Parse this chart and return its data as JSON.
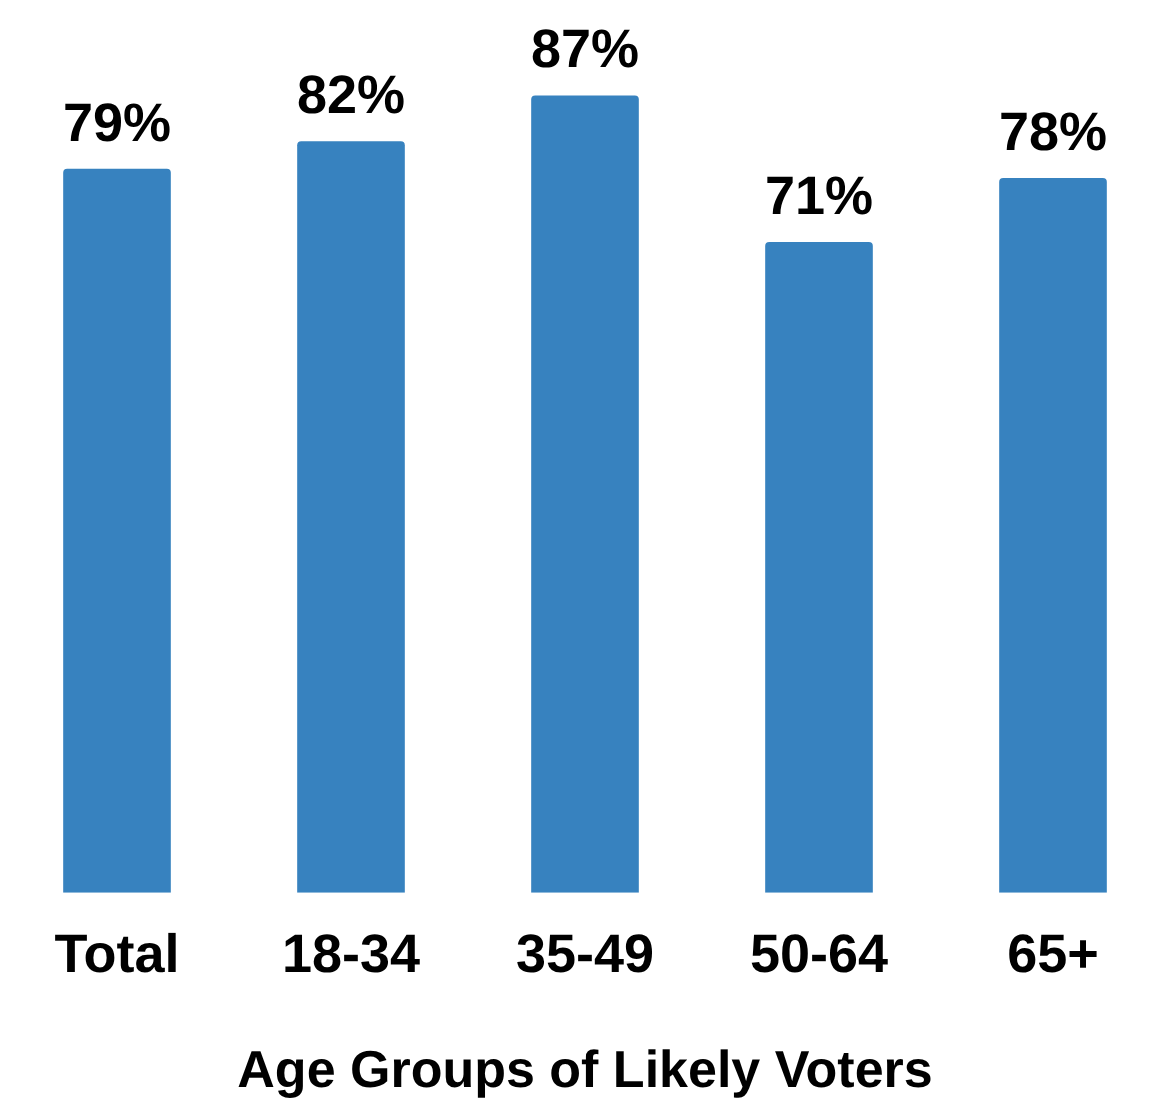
{
  "chart_data": {
    "type": "bar",
    "xlabel": "Age Groups of Likely Voters",
    "categories": [
      "Total",
      "18-34",
      "35-49",
      "50-64",
      "65+"
    ],
    "values": [
      79,
      82,
      87,
      71,
      78
    ],
    "value_labels": [
      "79%",
      "82%",
      "87%",
      "71%",
      "78%"
    ],
    "color": "#3782bf",
    "tick_labels": "x"
  }
}
